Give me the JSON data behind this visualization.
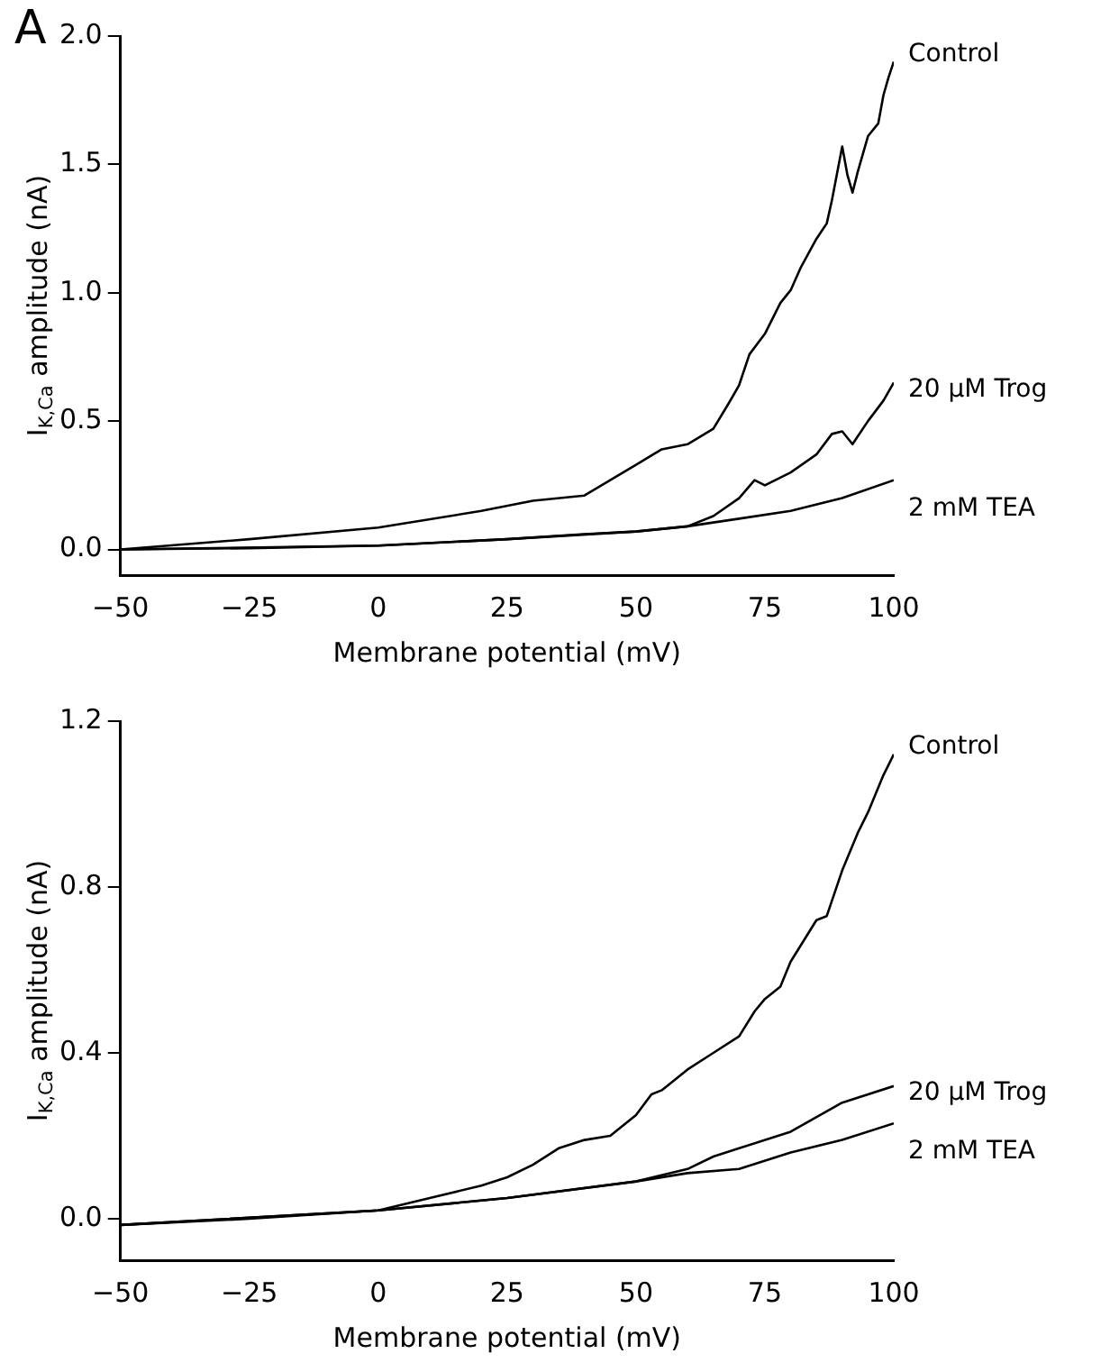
{
  "chart_data": [
    {
      "type": "line",
      "annotations": [
        "A"
      ],
      "xlabel": "Membrane potential (mV)",
      "ylabel": "I$_{K,Ca}$ amplitude (nA)",
      "xlim": [
        -50,
        100
      ],
      "xticks": [
        -50,
        -25,
        0,
        25,
        50,
        75,
        100
      ],
      "ylim": [
        -0.1,
        2.0
      ],
      "yticks": [
        {
          "value": 0,
          "label": "0.0"
        },
        0.5,
        {
          "value": 1,
          "label": "1.0"
        },
        1.5,
        {
          "value": 2,
          "label": "2.0"
        }
      ],
      "grid": false,
      "legend": false,
      "marker": "none",
      "line_style": "solid",
      "series": [
        {
          "name": "Control",
          "color": "#000000",
          "x": [
            -50,
            -25,
            0,
            20,
            30,
            40,
            45,
            50,
            55,
            60,
            65,
            68,
            70,
            72,
            75,
            78,
            80,
            82,
            85,
            87,
            88,
            90,
            91,
            92,
            93,
            95,
            97,
            98,
            99,
            100
          ],
          "values": [
            0,
            0.04,
            0.085,
            0.15,
            0.19,
            0.21,
            0.27,
            0.33,
            0.39,
            0.41,
            0.47,
            0.57,
            0.64,
            0.76,
            0.84,
            0.96,
            1.01,
            1.1,
            1.21,
            1.27,
            1.36,
            1.57,
            1.46,
            1.39,
            1.47,
            1.61,
            1.66,
            1.77,
            1.84,
            1.9
          ]
        },
        {
          "name": "20 μM Trog",
          "color": "#000000",
          "x": [
            -50,
            -25,
            0,
            25,
            40,
            50,
            60,
            65,
            70,
            73,
            75,
            80,
            85,
            88,
            90,
            92,
            95,
            98,
            100
          ],
          "values": [
            0,
            0.005,
            0.015,
            0.04,
            0.06,
            0.07,
            0.09,
            0.13,
            0.2,
            0.27,
            0.25,
            0.3,
            0.37,
            0.45,
            0.46,
            0.41,
            0.5,
            0.58,
            0.65
          ]
        },
        {
          "name": "2 mM TEA",
          "color": "#000000",
          "x": [
            -50,
            0,
            25,
            50,
            60,
            70,
            80,
            90,
            100
          ],
          "values": [
            0,
            0.015,
            0.04,
            0.07,
            0.09,
            0.12,
            0.15,
            0.2,
            0.27
          ]
        }
      ]
    },
    {
      "type": "line",
      "xlabel": "Membrane potential (mV)",
      "ylabel": "I$_{K,Ca}$ amplitude (nA)",
      "xlim": [
        -50,
        100
      ],
      "xticks": [
        -50,
        -25,
        0,
        25,
        50,
        75,
        100
      ],
      "ylim": [
        -0.1,
        1.2
      ],
      "yticks": [
        {
          "value": 0,
          "label": "0.0"
        },
        0.4,
        0.8,
        1.2
      ],
      "grid": false,
      "legend": false,
      "marker": "none",
      "line_style": "solid",
      "series": [
        {
          "name": "Control",
          "color": "#000000",
          "x": [
            -50,
            -25,
            0,
            10,
            20,
            25,
            30,
            35,
            40,
            45,
            50,
            53,
            55,
            60,
            65,
            70,
            73,
            75,
            78,
            80,
            85,
            87,
            90,
            93,
            95,
            98,
            100
          ],
          "values": [
            -0.015,
            0,
            0.02,
            0.05,
            0.08,
            0.1,
            0.13,
            0.17,
            0.19,
            0.2,
            0.25,
            0.3,
            0.31,
            0.36,
            0.4,
            0.44,
            0.5,
            0.53,
            0.56,
            0.62,
            0.72,
            0.73,
            0.84,
            0.93,
            0.98,
            1.07,
            1.12
          ]
        },
        {
          "name": "20 μM Trog",
          "color": "#000000",
          "x": [
            -50,
            0,
            25,
            50,
            60,
            65,
            70,
            80,
            90,
            100
          ],
          "values": [
            -0.015,
            0.02,
            0.05,
            0.09,
            0.12,
            0.15,
            0.17,
            0.21,
            0.28,
            0.32
          ]
        },
        {
          "name": "2 mM TEA",
          "color": "#000000",
          "x": [
            -50,
            0,
            25,
            50,
            60,
            70,
            80,
            90,
            100
          ],
          "values": [
            -0.015,
            0.02,
            0.05,
            0.09,
            0.11,
            0.12,
            0.16,
            0.19,
            0.23
          ]
        }
      ]
    }
  ]
}
